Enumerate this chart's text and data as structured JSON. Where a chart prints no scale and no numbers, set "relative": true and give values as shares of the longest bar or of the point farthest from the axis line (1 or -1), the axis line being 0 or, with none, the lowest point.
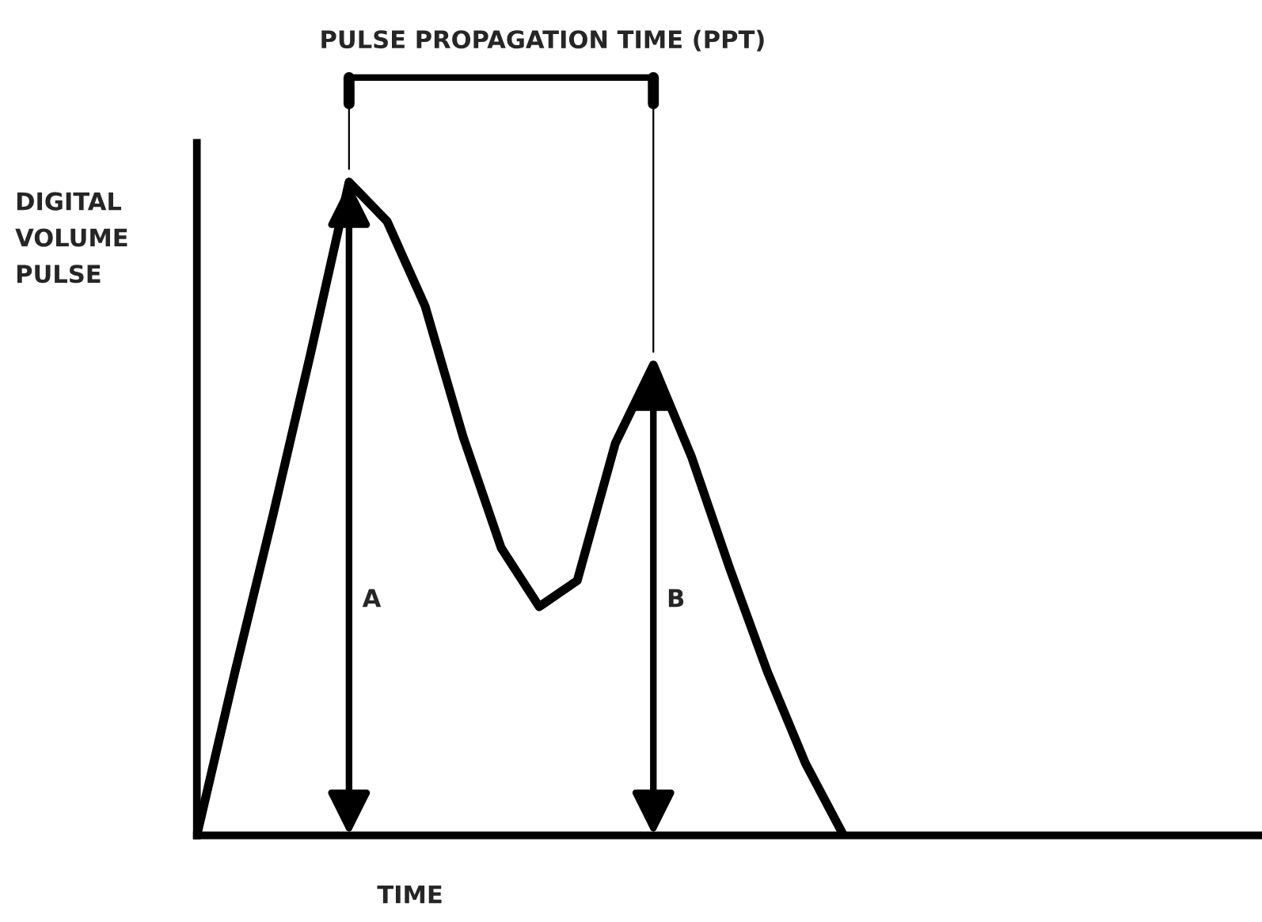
{
  "chart_data": {
    "type": "line",
    "title": "PULSE PROPAGATION TIME (PPT)",
    "xlabel": "TIME",
    "ylabel": "DIGITAL\nVOLUME\nPULSE",
    "relative": true,
    "color": "#000000",
    "marker": "none",
    "line_style": "solid",
    "grid": false,
    "legend": false,
    "categories": [
      null,
      null,
      null,
      null,
      null,
      null,
      null,
      null,
      null,
      null,
      null,
      null,
      null,
      null,
      null,
      null,
      null,
      null,
      null,
      null,
      null,
      null,
      null,
      null,
      null,
      null,
      null,
      null,
      null
    ],
    "values": [
      0,
      0.25,
      0.49,
      0.74,
      1.0,
      0.94,
      0.81,
      0.61,
      0.44,
      0.35,
      0.39,
      0.6,
      0.72,
      0.58,
      0.41,
      0.25,
      0.11,
      0,
      null,
      null,
      null,
      null,
      null,
      null,
      null,
      null,
      null,
      null,
      null
    ],
    "annotations": [
      "A",
      "B"
    ]
  }
}
